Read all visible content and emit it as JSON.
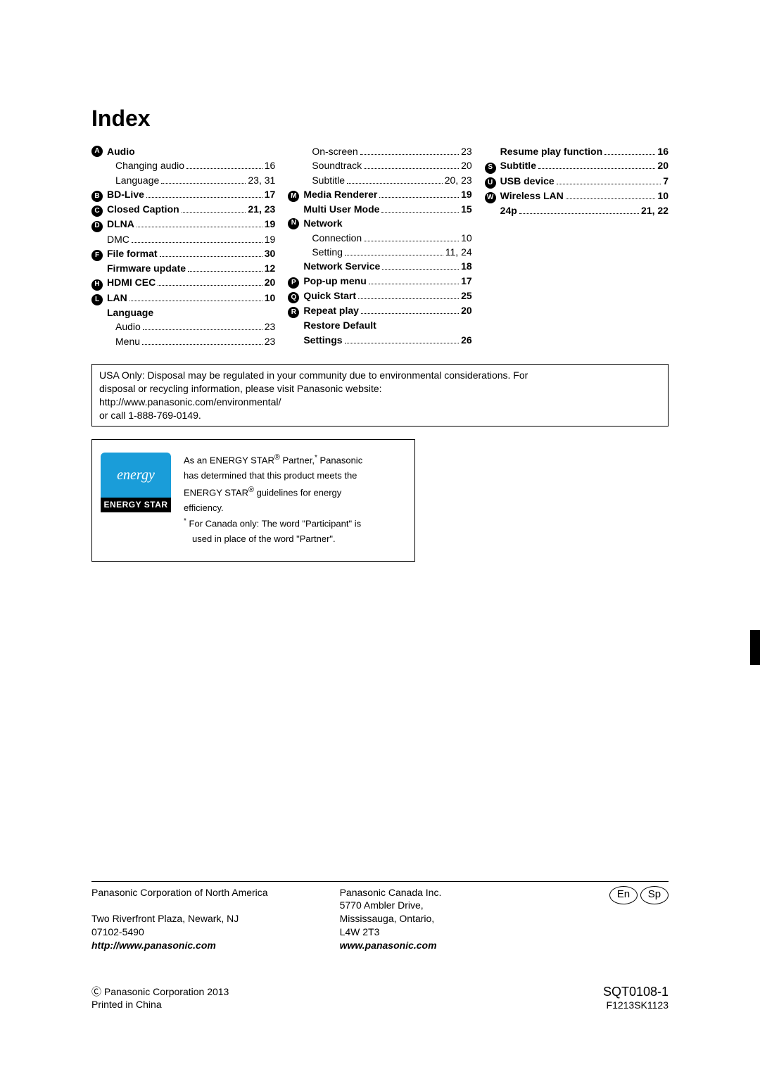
{
  "title": "Index",
  "columns": [
    [
      {
        "type": "grouphead",
        "letter": "A",
        "label": "Audio"
      },
      {
        "type": "sub",
        "label": "Changing audio",
        "page": "16"
      },
      {
        "type": "sub",
        "label": "Language",
        "page": "23, 31"
      },
      {
        "type": "entry",
        "letter": "B",
        "bold": true,
        "label": "BD-Live",
        "page": "17"
      },
      {
        "type": "entry",
        "letter": "C",
        "bold": true,
        "label": "Closed Caption",
        "page": "21, 23"
      },
      {
        "type": "entry",
        "letter": "D",
        "bold": true,
        "label": "DLNA",
        "page": "19"
      },
      {
        "type": "entry",
        "indent": true,
        "label": "DMC",
        "page": "19"
      },
      {
        "type": "entry",
        "letter": "F",
        "bold": true,
        "label": "File format",
        "page": "30"
      },
      {
        "type": "entry",
        "indent": true,
        "bold": true,
        "label": "Firmware update",
        "page": "12"
      },
      {
        "type": "entry",
        "letter": "H",
        "bold": true,
        "label": "HDMI CEC",
        "page": "20"
      },
      {
        "type": "entry",
        "letter": "L",
        "bold": true,
        "label": "LAN",
        "page": "10"
      },
      {
        "type": "grouphead",
        "indent": true,
        "label": "Language"
      },
      {
        "type": "sub",
        "label": "Audio",
        "page": "23"
      },
      {
        "type": "sub",
        "label": "Menu",
        "page": "23"
      }
    ],
    [
      {
        "type": "sub",
        "label": "On-screen",
        "page": "23"
      },
      {
        "type": "sub",
        "label": "Soundtrack",
        "page": "20"
      },
      {
        "type": "sub",
        "label": "Subtitle",
        "page": "20, 23"
      },
      {
        "type": "entry",
        "letter": "M",
        "bold": true,
        "label": "Media Renderer",
        "page": "19"
      },
      {
        "type": "entry",
        "indent": true,
        "bold": true,
        "label": "Multi User Mode",
        "page": "15"
      },
      {
        "type": "grouphead",
        "letter": "N",
        "label": "Network"
      },
      {
        "type": "sub",
        "label": "Connection",
        "page": "10"
      },
      {
        "type": "sub",
        "label": "Setting",
        "page": "11, 24"
      },
      {
        "type": "entry",
        "indent": true,
        "bold": true,
        "label": "Network Service",
        "page": "18"
      },
      {
        "type": "entry",
        "letter": "P",
        "bold": true,
        "label": "Pop-up menu",
        "page": "17"
      },
      {
        "type": "entry",
        "letter": "Q",
        "bold": true,
        "label": "Quick Start",
        "page": "25"
      },
      {
        "type": "entry",
        "letter": "R",
        "bold": true,
        "label": "Repeat play",
        "page": "20"
      },
      {
        "type": "grouphead",
        "indent": true,
        "label": "Restore Default"
      },
      {
        "type": "entry",
        "indent": true,
        "bold": true,
        "label": "Settings",
        "page": "26"
      }
    ],
    [
      {
        "type": "entry",
        "indent": true,
        "bold": true,
        "label": "Resume play function",
        "page": "16"
      },
      {
        "type": "entry",
        "letter": "S",
        "bold": true,
        "label": "Subtitle",
        "page": "20"
      },
      {
        "type": "entry",
        "letter": "U",
        "bold": true,
        "label": "USB device",
        "page": "7"
      },
      {
        "type": "entry",
        "letter": "W",
        "bold": true,
        "label": "Wireless LAN",
        "page": "10"
      },
      {
        "type": "entry",
        "indent": true,
        "bold": true,
        "label": "24p",
        "page": "21, 22"
      }
    ]
  ],
  "disposal": {
    "line1": "USA Only: Disposal may be regulated in your community due to environmental considerations. For",
    "line2": "disposal or recycling information, please visit Panasonic website:",
    "line3": "http://www.panasonic.com/environmental/",
    "line4": "or call 1-888-769-0149."
  },
  "energy": {
    "logo_text": "energy",
    "logo_label": "ENERGY STAR",
    "p1_a": "As an ENERGY STAR",
    "p1_b": " Partner,",
    "p1_c": " Panasonic",
    "p2": "has determined that this product meets the",
    "p3_a": "ENERGY STAR",
    "p3_b": " guidelines for energy",
    "p4": "efficiency.",
    "note_a": "For Canada only: The word \"Participant\" is",
    "note_b": "used in place of the word \"Partner\"."
  },
  "footer": {
    "us_title": "Panasonic Corporation of North America",
    "us_addr1": "Two Riverfront Plaza, Newark, NJ",
    "us_addr2": "07102-5490",
    "us_url": "http://www.panasonic.com",
    "ca_title": "Panasonic Canada Inc.",
    "ca_addr1": "5770 Ambler Drive,",
    "ca_addr2": "Mississauga, Ontario,",
    "ca_addr3": "L4W 2T3",
    "ca_url": "www.panasonic.com",
    "lang_en": "En",
    "lang_sp": "Sp",
    "copyright": "Ⓒ Panasonic Corporation 2013",
    "printed": "Printed in China",
    "code1": "SQT0108-1",
    "code2": "F1213SK1123"
  }
}
